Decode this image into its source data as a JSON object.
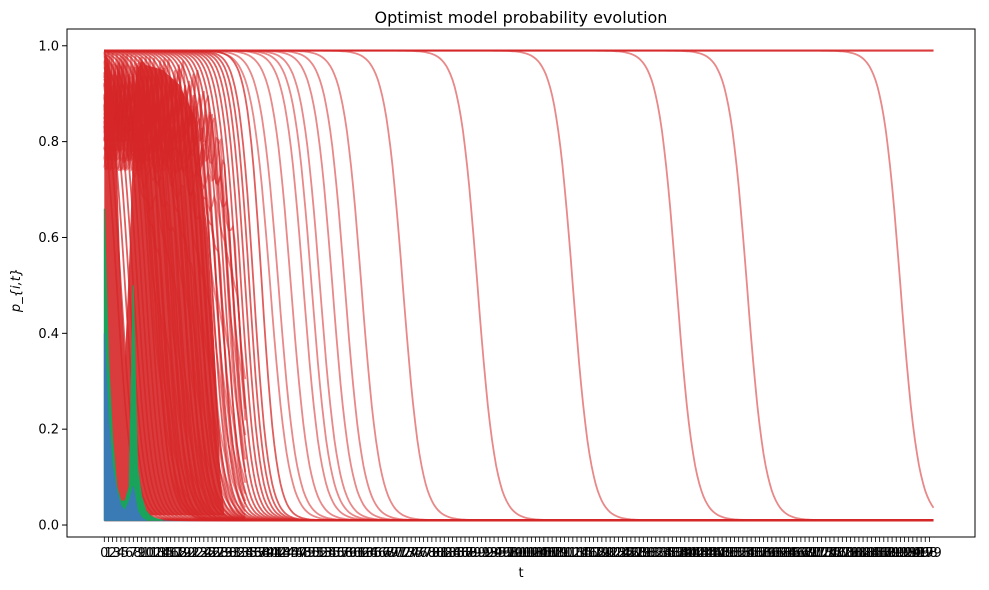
{
  "chart_data": {
    "type": "line",
    "title": "Optimist model probability evolution",
    "xlabel": "t",
    "ylabel": "p_{i,t}",
    "ylim": [
      -0.025,
      1.035
    ],
    "xlim": [
      -9,
      210
    ],
    "yticks": [
      0.0,
      0.2,
      0.4,
      0.6,
      0.8,
      1.0
    ],
    "ytick_labels": [
      "0.0",
      "0.2",
      "0.4",
      "0.6",
      "0.8",
      "1.0"
    ],
    "x_tick_count": 200,
    "legend": "none",
    "grid": false,
    "colors": {
      "red": "#d62728",
      "green": "#1aa35a",
      "blue": "#3a7bb5",
      "baseline": "#6b5a70"
    },
    "series_groups": [
      {
        "color": "red",
        "description": "optimist-red curves starting near 0.99 and decaying to 0.01; approximate drop points t",
        "upper": 0.99,
        "lower": 0.01,
        "drop_points": [
          3,
          4,
          5,
          6,
          7,
          8,
          9,
          10,
          11,
          12,
          13,
          14,
          15,
          16,
          17,
          18,
          19,
          20,
          21,
          22,
          23,
          24,
          25,
          26,
          27,
          28,
          29,
          30,
          31,
          32,
          33,
          34,
          35,
          36,
          38,
          40,
          42,
          45,
          48,
          50,
          52,
          55,
          58,
          62,
          72,
          90,
          113,
          138,
          155,
          192
        ]
      },
      {
        "color": "green",
        "description": "green band peaks",
        "x": [
          0,
          1,
          2,
          3,
          4,
          5,
          6,
          7,
          8,
          9,
          10,
          11,
          12,
          13,
          14
        ],
        "y": [
          0.66,
          0.35,
          0.18,
          0.08,
          0.05,
          0.05,
          0.08,
          0.5,
          0.12,
          0.06,
          0.03,
          0.02,
          0.015,
          0.012,
          0.01
        ]
      },
      {
        "color": "blue",
        "description": "blue band peaks",
        "x": [
          0,
          1,
          2,
          3,
          4,
          5,
          6,
          7,
          8,
          9,
          10
        ],
        "y": [
          0.4,
          0.22,
          0.12,
          0.07,
          0.04,
          0.03,
          0.05,
          0.08,
          0.03,
          0.015,
          0.01
        ]
      }
    ]
  }
}
